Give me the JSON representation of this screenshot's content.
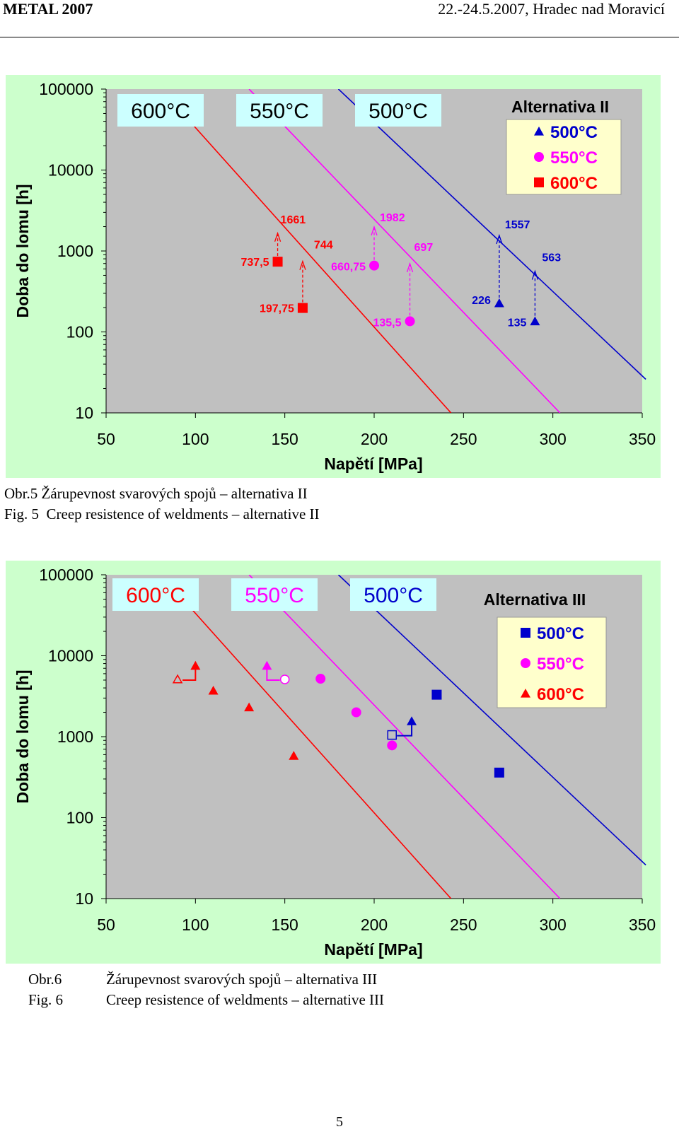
{
  "header": {
    "left": "METAL 2007",
    "right": "22.-24.5.2007, Hradec nad Moravicí"
  },
  "page_number": "5",
  "chart_data": [
    {
      "type": "scatter",
      "title": "Alternativa II",
      "xlabel": "Napětí [MPa]",
      "ylabel": "Doba do lomu [h]",
      "xlim": [
        50,
        350
      ],
      "ylim": [
        10,
        100000
      ],
      "yscale": "log",
      "xticks": [
        "50",
        "100",
        "150",
        "200",
        "250",
        "300",
        "350"
      ],
      "yticks": [
        "10",
        "100",
        "1000",
        "10000",
        "100000"
      ],
      "temp_boxes": [
        "600°C",
        "550°C",
        "500°C"
      ],
      "colors": {
        "600": "#ff0000",
        "550": "#ff00ff",
        "500": "#0000cc"
      },
      "lines": [
        {
          "name": "600°C",
          "color": "#ff0000",
          "x1": 88,
          "y1": 66000,
          "x2": 243,
          "y2": 10
        },
        {
          "name": "550°C",
          "color": "#ff00ff",
          "x1": 130,
          "y1": 100000,
          "x2": 304,
          "y2": 10
        },
        {
          "name": "500°C",
          "color": "#0000cc",
          "x1": 180,
          "y1": 100000,
          "x2": 352,
          "y2": 26
        }
      ],
      "legend": {
        "title": "Alternativa II",
        "items": [
          {
            "label": "500°C",
            "marker": "triangle",
            "color": "#0000cc"
          },
          {
            "label": "550°C",
            "marker": "circle",
            "color": "#ff00ff"
          },
          {
            "label": "600°C",
            "marker": "square",
            "color": "#ff0000"
          }
        ]
      },
      "points": [
        {
          "series": "600°C",
          "marker": "square",
          "x": 146,
          "y": 737.5,
          "label": "737,5",
          "color": "#ff0000"
        },
        {
          "series": "600°C",
          "marker": "square",
          "x": 160,
          "y": 197.75,
          "label": "197,75",
          "color": "#ff0000"
        },
        {
          "series": "550°C",
          "marker": "circle",
          "x": 200,
          "y": 660.75,
          "label": "660,75",
          "color": "#ff00ff"
        },
        {
          "series": "550°C",
          "marker": "circle",
          "x": 220,
          "y": 135.5,
          "label": "135,5",
          "color": "#ff00ff"
        },
        {
          "series": "500°C",
          "marker": "triangle",
          "x": 270,
          "y": 226,
          "label": "226",
          "color": "#0000cc"
        },
        {
          "series": "500°C",
          "marker": "triangle",
          "x": 290,
          "y": 135,
          "label": "135",
          "color": "#0000cc"
        }
      ],
      "projections": [
        {
          "x": 146,
          "from": 737.5,
          "to": 1661,
          "label": "1661",
          "color": "#ff0000"
        },
        {
          "x": 160,
          "from": 197.75,
          "to": 744,
          "label": "744",
          "color": "#ff0000"
        },
        {
          "x": 200,
          "from": 660.75,
          "to": 1982,
          "label": "1982",
          "color": "#ff00ff"
        },
        {
          "x": 220,
          "from": 135.5,
          "to": 697,
          "label": "697",
          "color": "#ff00ff"
        },
        {
          "x": 270,
          "from": 226,
          "to": 1557,
          "label": "1557",
          "color": "#0000cc"
        },
        {
          "x": 290,
          "from": 135,
          "to": 563,
          "label": "563",
          "color": "#0000cc"
        }
      ]
    },
    {
      "type": "scatter",
      "title": "Alternativa III",
      "xlabel": "Napětí [MPa]",
      "ylabel": "Doba do lomu [h]",
      "xlim": [
        50,
        350
      ],
      "ylim": [
        10,
        100000
      ],
      "yscale": "log",
      "xticks": [
        "50",
        "100",
        "150",
        "200",
        "250",
        "300",
        "350"
      ],
      "yticks": [
        "10",
        "100",
        "1000",
        "10000",
        "100000"
      ],
      "temp_boxes": [
        "600°C",
        "550°C",
        "500°C"
      ],
      "colors": {
        "600": "#ff0000",
        "550": "#ff00ff",
        "500": "#0000cc"
      },
      "lines": [
        {
          "name": "600°C",
          "color": "#ff0000",
          "x1": 88,
          "y1": 66000,
          "x2": 243,
          "y2": 10
        },
        {
          "name": "550°C",
          "color": "#ff00ff",
          "x1": 130,
          "y1": 100000,
          "x2": 304,
          "y2": 10
        },
        {
          "name": "500°C",
          "color": "#0000cc",
          "x1": 180,
          "y1": 100000,
          "x2": 352,
          "y2": 26
        }
      ],
      "legend": {
        "title": "Alternativa III",
        "items": [
          {
            "label": "500°C",
            "marker": "square",
            "color": "#0000cc"
          },
          {
            "label": "550°C",
            "marker": "circle",
            "color": "#ff00ff"
          },
          {
            "label": "600°C",
            "marker": "triangle",
            "color": "#ff0000"
          }
        ]
      },
      "points": [
        {
          "series": "600°C",
          "marker": "triangle",
          "x": 110,
          "y": 3700,
          "color": "#ff0000",
          "filled": true
        },
        {
          "series": "600°C",
          "marker": "triangle",
          "x": 130,
          "y": 2300,
          "color": "#ff0000",
          "filled": true
        },
        {
          "series": "600°C",
          "marker": "triangle",
          "x": 155,
          "y": 580,
          "color": "#ff0000",
          "filled": true
        },
        {
          "series": "550°C",
          "marker": "circle",
          "x": 170,
          "y": 5200,
          "color": "#ff00ff",
          "filled": true
        },
        {
          "series": "550°C",
          "marker": "circle",
          "x": 190,
          "y": 2000,
          "color": "#ff00ff",
          "filled": true
        },
        {
          "series": "550°C",
          "marker": "circle",
          "x": 210,
          "y": 780,
          "color": "#ff00ff",
          "filled": true
        },
        {
          "series": "500°C",
          "marker": "square",
          "x": 235,
          "y": 3300,
          "color": "#0000cc",
          "filled": true
        },
        {
          "series": "500°C",
          "marker": "square",
          "x": 270,
          "y": 360,
          "color": "#0000cc",
          "filled": true
        }
      ],
      "runouts": [
        {
          "marker": "triangle",
          "color": "#ff0000",
          "x_from": 90,
          "y": 5100,
          "x_to": 100,
          "y_to": 7500
        },
        {
          "marker": "circle",
          "color": "#ff00ff",
          "x_from": 150,
          "y": 5100,
          "x_to": 140,
          "y_to": 7500
        },
        {
          "marker": "square",
          "color": "#0000cc",
          "x_from": 210,
          "y": 1050,
          "x_to": 221,
          "y_to": 1550
        }
      ]
    }
  ],
  "captions": [
    {
      "label": "Obr.5",
      "text": "Žárupevnost svarových spojů – alternativa II"
    },
    {
      "label": "Fig. 5",
      "text": "Creep resistence of weldments – alternative II"
    },
    {
      "label": "Obr.6",
      "text": "Žárupevnost svarových spojů – alternativa III"
    },
    {
      "label": "Fig. 6",
      "text": "Creep resistence of weldments – alternative III"
    }
  ]
}
